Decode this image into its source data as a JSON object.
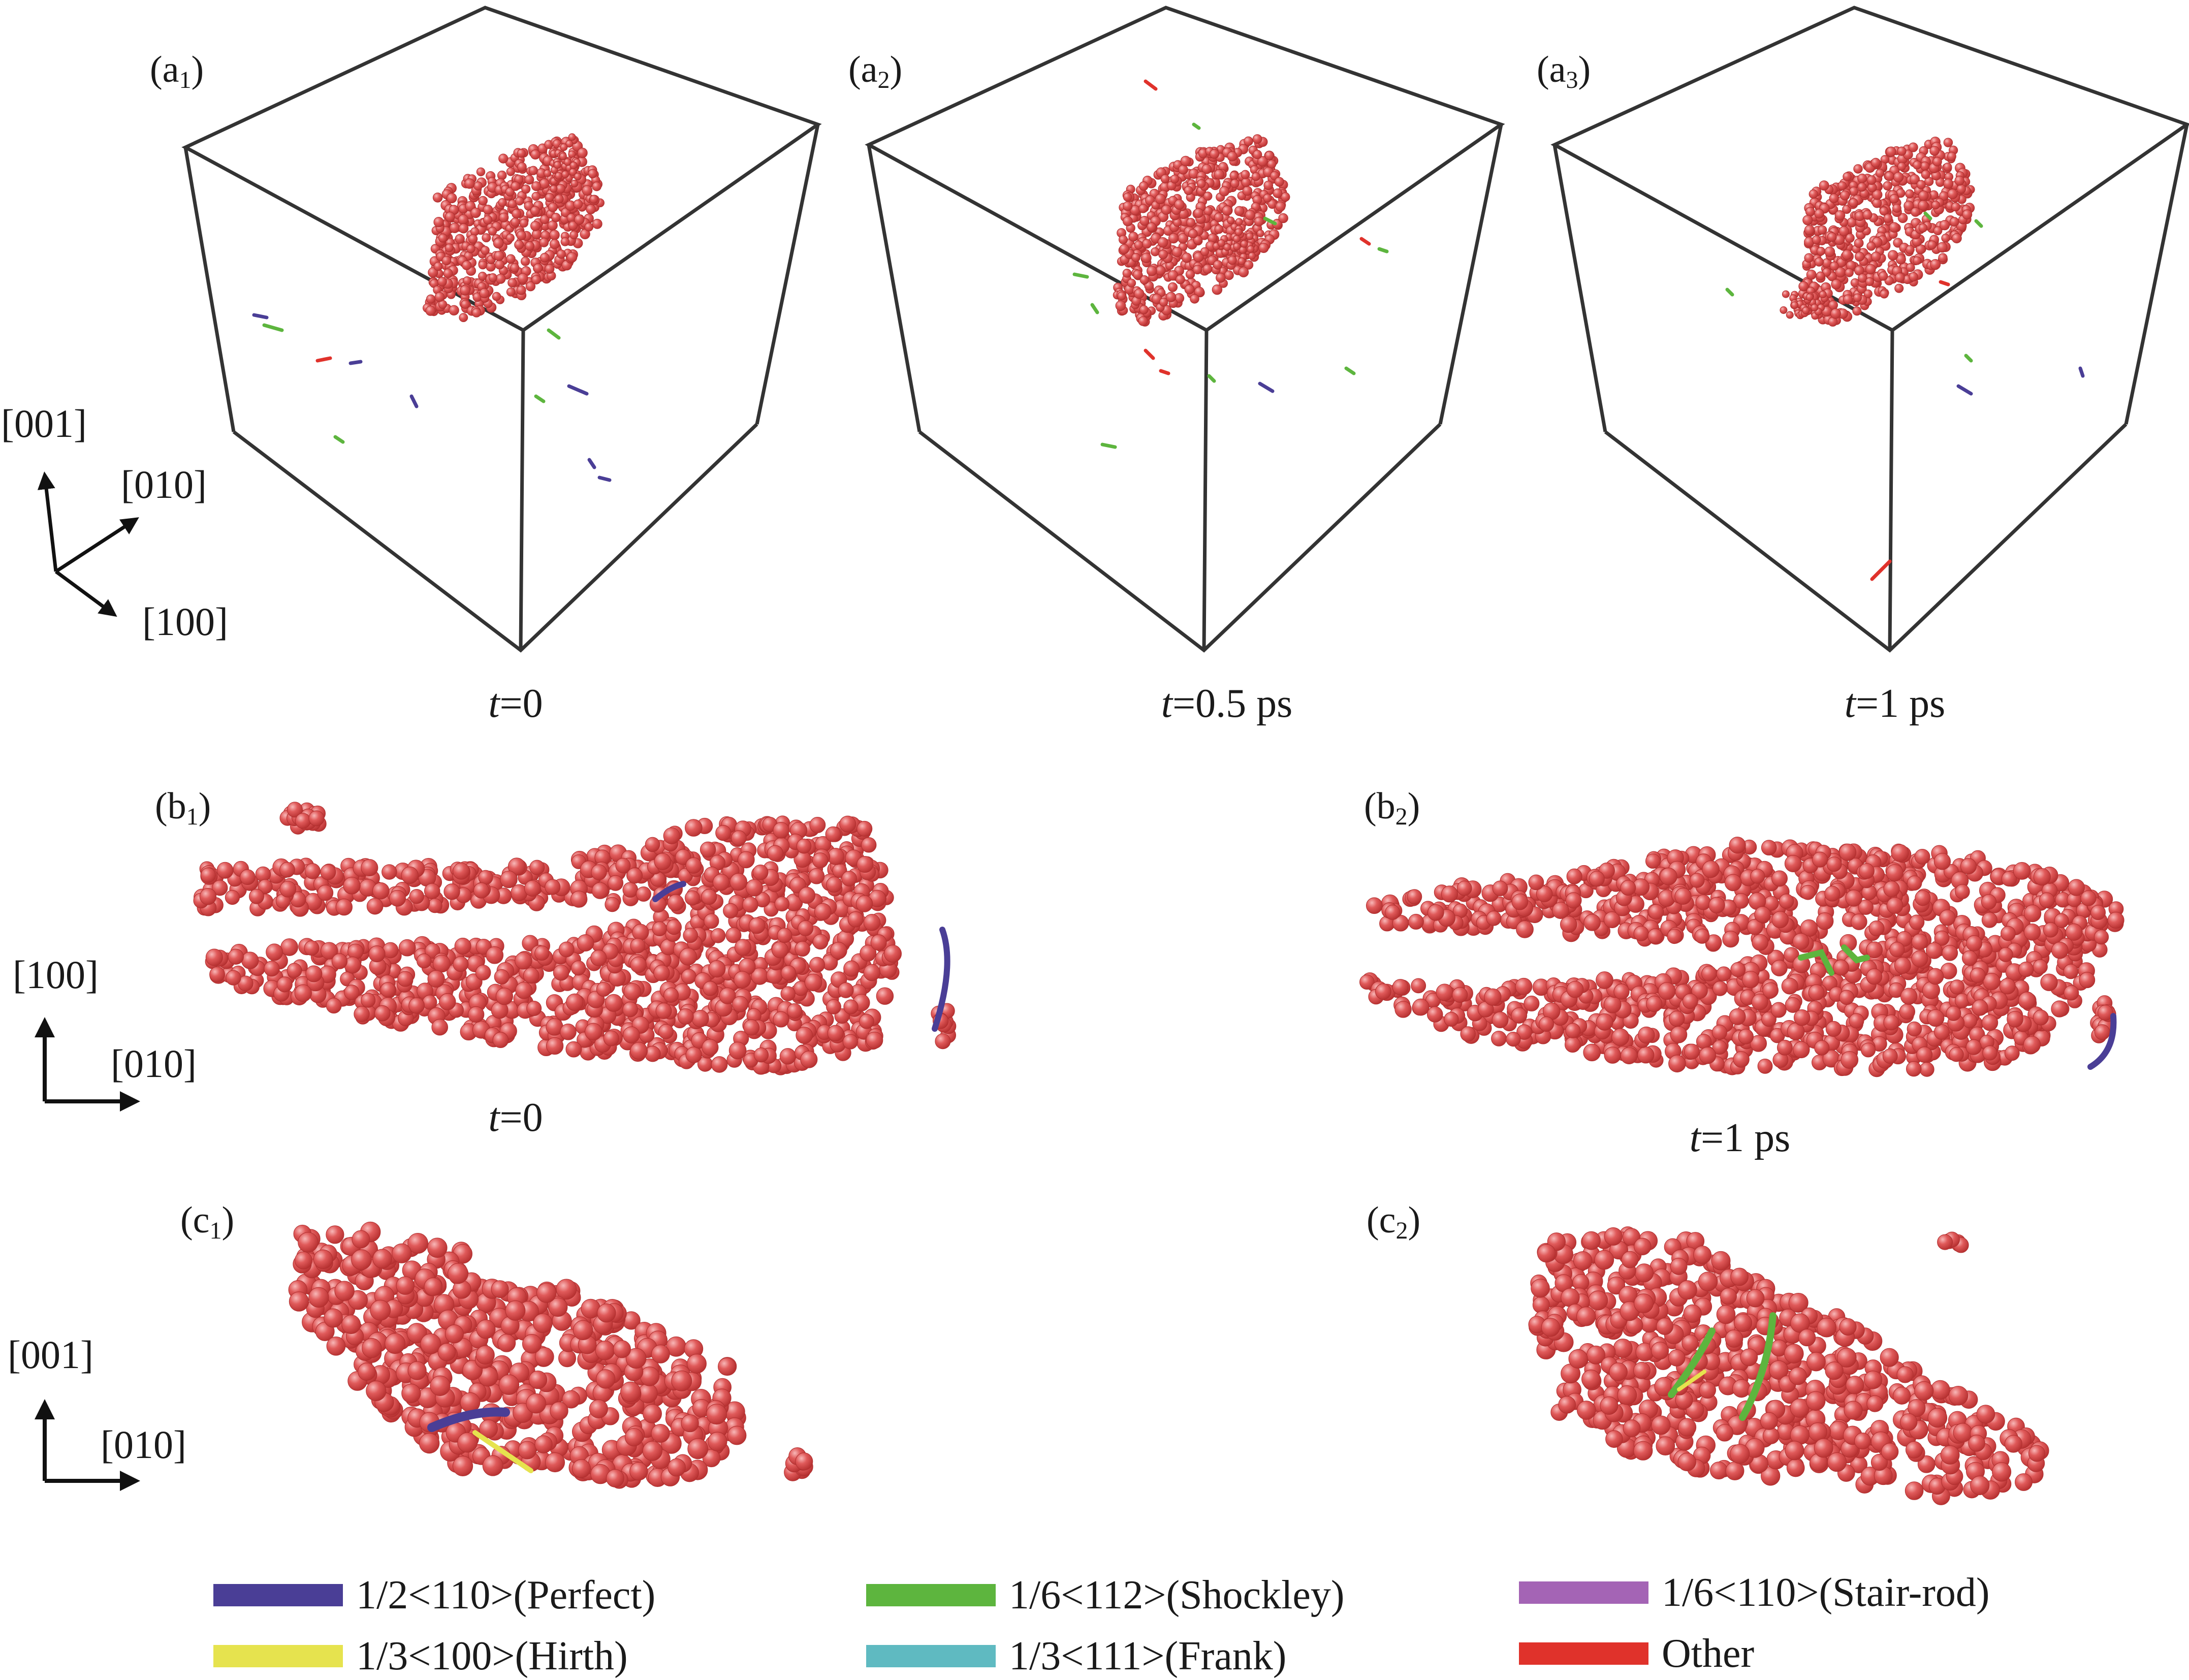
{
  "panels": {
    "a1": {
      "letter": "a",
      "sub": "1",
      "time_var": "t",
      "time_value": "=0"
    },
    "a2": {
      "letter": "a",
      "sub": "2",
      "time_var": "t",
      "time_value": "=0.5 ps"
    },
    "a3": {
      "letter": "a",
      "sub": "3",
      "time_var": "t",
      "time_value": "=1 ps"
    },
    "b1": {
      "letter": "b",
      "sub": "1",
      "time_var": "t",
      "time_value": "=0"
    },
    "b2": {
      "letter": "b",
      "sub": "2",
      "time_var": "t",
      "time_value": "=1 ps"
    },
    "c1": {
      "letter": "c",
      "sub": "1"
    },
    "c2": {
      "letter": "c",
      "sub": "2"
    }
  },
  "axes": {
    "a": {
      "up": "[001]",
      "diag_up": "[010]",
      "diag_down": "[100]"
    },
    "b": {
      "up": "[100]",
      "right": "[010]"
    },
    "c": {
      "up": "[001]",
      "right": "[010]"
    }
  },
  "legend": [
    {
      "label": "1/2<110>(Perfect)",
      "color": "#4a3e96"
    },
    {
      "label": "1/6<112>(Shockley)",
      "color": "#5db53e"
    },
    {
      "label": "1/6<110>(Stair-rod)",
      "color": "#a464b5"
    },
    {
      "label": "1/3<100>(Hirth)",
      "color": "#e6e34e"
    },
    {
      "label": "1/3<111>(Frank)",
      "color": "#5fbac1"
    },
    {
      "label": "Other",
      "color": "#e0322b"
    }
  ],
  "colors": {
    "atom": "#d94f4f",
    "atom_highlight": "#f4a8a8",
    "box_edge": "#333333",
    "axis": "#111111"
  }
}
